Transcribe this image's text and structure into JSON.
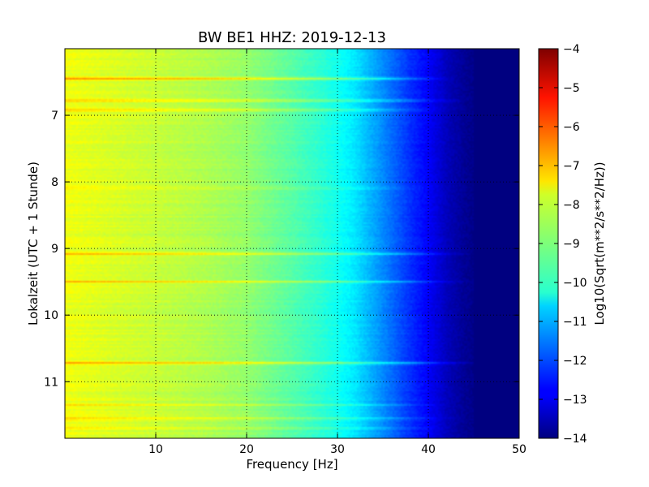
{
  "chart_data": {
    "type": "heatmap",
    "title": "BW BE1 HHZ: 2019-12-13",
    "xlabel": "Frequency [Hz]",
    "ylabel": "Lokalzeit (UTC + 1 Stunde)",
    "xlim": [
      0,
      50
    ],
    "ylim": [
      6.0,
      11.85
    ],
    "y_inverted": true,
    "x_ticks": [
      10,
      20,
      30,
      40,
      50
    ],
    "y_ticks": [
      7,
      8,
      9,
      10,
      11
    ],
    "grid": true,
    "colormap": "jet",
    "colorbar": {
      "label": "Log10(Sqrt(m**2/s**2/Hz))",
      "range": [
        -14,
        -4
      ],
      "ticks": [
        -4,
        -5,
        -6,
        -7,
        -8,
        -9,
        -10,
        -11,
        -12,
        -13,
        -14
      ]
    },
    "spectral_profile": {
      "frequency_hz": [
        0,
        5,
        10,
        15,
        20,
        25,
        28,
        30,
        32,
        34,
        36,
        38,
        40,
        42,
        44,
        46,
        50
      ],
      "level": [
        -7.9,
        -8.1,
        -8.3,
        -8.5,
        -8.8,
        -9.4,
        -9.8,
        -10.1,
        -10.5,
        -11.1,
        -11.7,
        -12.3,
        -12.8,
        -13.4,
        -13.8,
        -14,
        -14
      ]
    },
    "event_bands": [
      {
        "time": 6.45,
        "level_offset": 1.2,
        "f_max": 43
      },
      {
        "time": 6.78,
        "level_offset": 1.1,
        "f_max": 45
      },
      {
        "time": 6.92,
        "level_offset": 0.8,
        "f_max": 42
      },
      {
        "time": 8.1,
        "level_offset": 0.5,
        "f_max": 42
      },
      {
        "time": 9.08,
        "level_offset": 1.0,
        "f_max": 45
      },
      {
        "time": 9.5,
        "level_offset": 1.1,
        "f_max": 45
      },
      {
        "time": 10.72,
        "level_offset": 1.4,
        "f_max": 46
      },
      {
        "time": 11.35,
        "level_offset": 0.6,
        "f_max": 43
      },
      {
        "time": 11.55,
        "level_offset": 0.7,
        "f_max": 44
      },
      {
        "time": 11.7,
        "level_offset": 0.5,
        "f_max": 43
      }
    ]
  }
}
